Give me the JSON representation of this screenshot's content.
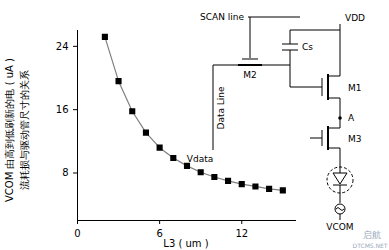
{
  "chart_data": {
    "type": "line",
    "x_label": "L3 ( um )",
    "y_label": [
      "VCOM 由高到低刷新的电 ( uA )",
      "流耗损与驱动管尺寸的关系"
    ],
    "x": [
      2,
      3,
      4,
      5,
      6,
      7,
      8,
      9,
      10,
      11,
      12,
      13,
      14,
      15
    ],
    "values": [
      25.2,
      19.6,
      15.8,
      13.1,
      11.2,
      9.9,
      8.9,
      8.1,
      7.5,
      7.0,
      6.6,
      6.3,
      6.0,
      5.8
    ],
    "color": "#000000",
    "marker": "square",
    "xlim": [
      0,
      16
    ],
    "xticks": [
      0,
      6,
      12
    ],
    "ylim": [
      2,
      26
    ],
    "yticks": [
      8,
      16,
      24
    ],
    "grid": false,
    "annotations": [
      "SCAN line",
      "VDD",
      "Cs",
      "M2",
      "M1",
      "A",
      "M3",
      "Data Line",
      "Vdata",
      "VCOM",
      "启航",
      "DTCMS.NET"
    ]
  }
}
